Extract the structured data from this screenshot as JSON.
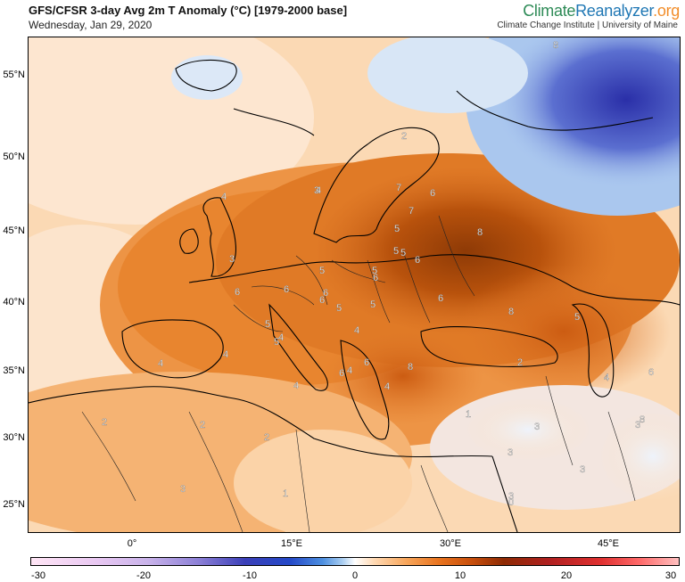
{
  "header": {
    "title": "GFS/CFSR 3-day Avg 2m T Anomaly (°C) [1979-2000 base]",
    "date": "Wednesday, Jan 29, 2020",
    "brand_climate": "Climate",
    "brand_reanalyzer": "Reanalyzer",
    "brand_org": ".org",
    "brand_sub": "Climate Change Institute | University of Maine"
  },
  "map": {
    "lat_labels": [
      "55°N",
      "50°N",
      "45°N",
      "40°N",
      "35°N",
      "30°N",
      "25°N"
    ],
    "lon_labels": [
      "0°",
      "15°E",
      "30°E",
      "45°E"
    ],
    "contour_labels": [
      "8",
      "2",
      "6",
      "7",
      "7",
      "5",
      "8",
      "5",
      "6",
      "5",
      "5",
      "5",
      "6",
      "6",
      "6",
      "6",
      "6",
      "5",
      "5",
      "4",
      "5",
      "5",
      "4",
      "6",
      "8",
      "5",
      "4",
      "4",
      "4",
      "4",
      "6",
      "8",
      "4",
      "2",
      "6",
      "4",
      "1",
      "3",
      "3",
      "8",
      "3",
      "3",
      "3",
      "2",
      "2",
      "2",
      "4",
      "3",
      "1",
      "3",
      "0",
      "4",
      "6",
      "4",
      "3"
    ]
  },
  "colorbar": {
    "ticks": [
      "-30",
      "-20",
      "-10",
      "0",
      "10",
      "20",
      "30"
    ],
    "colors": {
      "strong_cold": "#3b3fb8",
      "cold": "#a7ccf0",
      "neutral": "#ffffff",
      "warm": "#f7a55a",
      "hot": "#c84f0c",
      "very_hot": "#8e2a04"
    }
  }
}
